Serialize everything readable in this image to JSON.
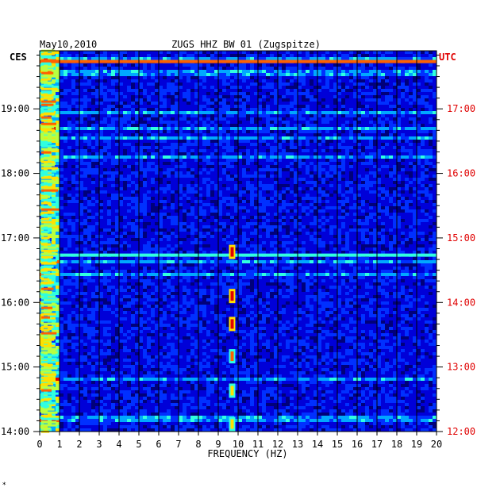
{
  "chart_data": {
    "type": "heatmap",
    "date": "May10,2010",
    "title": "ZUGS HHZ BW 01 (Zugspitze)",
    "left_axis_label": "CES",
    "right_axis_label": "UTC",
    "xlabel": "FREQUENCY (HZ)",
    "xlim": [
      0,
      20
    ],
    "x_ticks": [
      "0",
      "1",
      "2",
      "3",
      "4",
      "5",
      "6",
      "7",
      "8",
      "9",
      "10",
      "11",
      "12",
      "13",
      "14",
      "15",
      "16",
      "17",
      "18",
      "19",
      "20"
    ],
    "y_ticks_left": [
      "14:00",
      "15:00",
      "16:00",
      "17:00",
      "18:00",
      "19:00"
    ],
    "y_ticks_right": [
      "12:00",
      "13:00",
      "14:00",
      "15:00",
      "16:00",
      "17:00"
    ],
    "ylim_ces_hours": [
      14.0,
      19.9
    ],
    "grid": true,
    "colormap": [
      "#00007a",
      "#0000d8",
      "#0030ff",
      "#00a8ff",
      "#30ffe0",
      "#b8ff40",
      "#ffe000",
      "#ff6000",
      "#e00000"
    ],
    "features": [
      {
        "kind": "horizontal-band",
        "time_ces": "19:44",
        "freq_range": [
          0,
          20
        ],
        "level": 0.85
      },
      {
        "kind": "horizontal-band",
        "time_ces": "16:44",
        "freq_range": [
          0,
          20
        ],
        "level": 0.55
      },
      {
        "kind": "spot",
        "freq": 9.7,
        "time_ces": "16:47",
        "level": 0.95
      },
      {
        "kind": "spot",
        "freq": 9.7,
        "time_ces": "16:06",
        "level": 0.95
      },
      {
        "kind": "spot",
        "freq": 9.7,
        "time_ces": "15:40",
        "level": 0.95
      },
      {
        "kind": "spot",
        "freq": 9.7,
        "time_ces": "15:10",
        "level": 0.8
      },
      {
        "kind": "spot",
        "freq": 9.7,
        "time_ces": "14:38",
        "level": 0.7
      },
      {
        "kind": "spot",
        "freq": 9.7,
        "time_ces": "14:07",
        "level": 0.7
      },
      {
        "kind": "low-frequency-energy",
        "freq_range": [
          0,
          1
        ],
        "time_range_ces": [
          "14:00",
          "19:55"
        ],
        "level": 0.75
      }
    ]
  },
  "footer_mark": "*"
}
